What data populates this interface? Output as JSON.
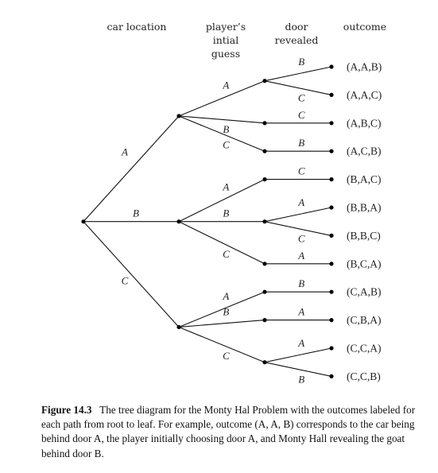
{
  "headers": {
    "car_location": "car location",
    "player_guess_lines": [
      "player’s",
      "intial",
      "guess"
    ],
    "door_revealed_lines": [
      "door",
      "revealed"
    ],
    "outcome": "outcome"
  },
  "tree": {
    "root": {
      "children": [
        {
          "label": "A",
          "children": [
            {
              "label": "A",
              "children": [
                {
                  "label": "B",
                  "outcome": "(A,A,B)"
                },
                {
                  "label": "C",
                  "outcome": "(A,A,C)"
                }
              ]
            },
            {
              "label": "B",
              "children": [
                {
                  "label": "C",
                  "outcome": "(A,B,C)"
                }
              ]
            },
            {
              "label": "C",
              "children": [
                {
                  "label": "B",
                  "outcome": "(A,C,B)"
                }
              ]
            }
          ]
        },
        {
          "label": "B",
          "children": [
            {
              "label": "A",
              "children": [
                {
                  "label": "C",
                  "outcome": "(B,A,C)"
                }
              ]
            },
            {
              "label": "B",
              "children": [
                {
                  "label": "A",
                  "outcome": "(B,B,A)"
                },
                {
                  "label": "C",
                  "outcome": "(B,B,C)"
                }
              ]
            },
            {
              "label": "C",
              "children": [
                {
                  "label": "A",
                  "outcome": "(B,C,A)"
                }
              ]
            }
          ]
        },
        {
          "label": "C",
          "children": [
            {
              "label": "A",
              "children": [
                {
                  "label": "B",
                  "outcome": "(C,A,B)"
                }
              ]
            },
            {
              "label": "B",
              "children": [
                {
                  "label": "A",
                  "outcome": "(C,B,A)"
                }
              ]
            },
            {
              "label": "C",
              "children": [
                {
                  "label": "A",
                  "outcome": "(C,C,A)"
                },
                {
                  "label": "B",
                  "outcome": "(C,C,B)"
                }
              ]
            }
          ]
        }
      ]
    }
  },
  "caption": {
    "figure_label": "Figure 14.3",
    "text": "The tree diagram for the Monty Hal Problem with the outcomes labeled for each path from root to leaf. For example, outcome (A, A, B) corresponds to the car being behind door A, the player initially choosing door A, and Monty Hall revealing the goat behind door B."
  }
}
